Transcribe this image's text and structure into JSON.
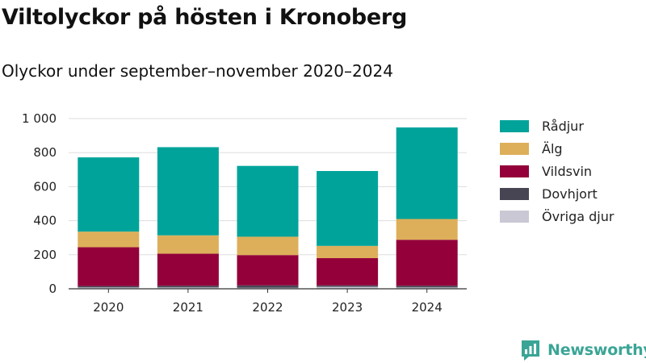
{
  "title": "Viltolyckor på hösten i Kronoberg",
  "subtitle": "Olyckor under september–november 2020–2024",
  "brand": {
    "name": "Newsworthy",
    "icon": "newsworthy-logo-icon",
    "color": "#3aa596"
  },
  "chart_data": {
    "type": "bar",
    "stacked": true,
    "categories": [
      "2020",
      "2021",
      "2022",
      "2023",
      "2024"
    ],
    "series": [
      {
        "name": "Övriga djur",
        "color": "#c9c8d4",
        "values": [
          8,
          8,
          6,
          12,
          8
        ]
      },
      {
        "name": "Dovhjort",
        "color": "#474553",
        "values": [
          8,
          10,
          14,
          8,
          10
        ]
      },
      {
        "name": "Vildsvin",
        "color": "#93003a",
        "values": [
          228,
          188,
          178,
          160,
          270
        ]
      },
      {
        "name": "Älg",
        "color": "#ddaf5a",
        "values": [
          92,
          108,
          108,
          72,
          122
        ]
      },
      {
        "name": "Rådjur",
        "color": "#00a39a",
        "values": [
          436,
          518,
          416,
          440,
          538
        ]
      }
    ],
    "ylim": [
      0,
      1000
    ],
    "yticks": [
      0,
      200,
      400,
      600,
      800,
      1000
    ],
    "ytick_labels": [
      "0",
      "200",
      "400",
      "600",
      "800",
      "1 000"
    ],
    "xlabel": "",
    "ylabel": "",
    "grid": true,
    "legend": {
      "placement": "right",
      "order": [
        "Rådjur",
        "Älg",
        "Vildsvin",
        "Dovhjort",
        "Övriga djur"
      ]
    }
  }
}
